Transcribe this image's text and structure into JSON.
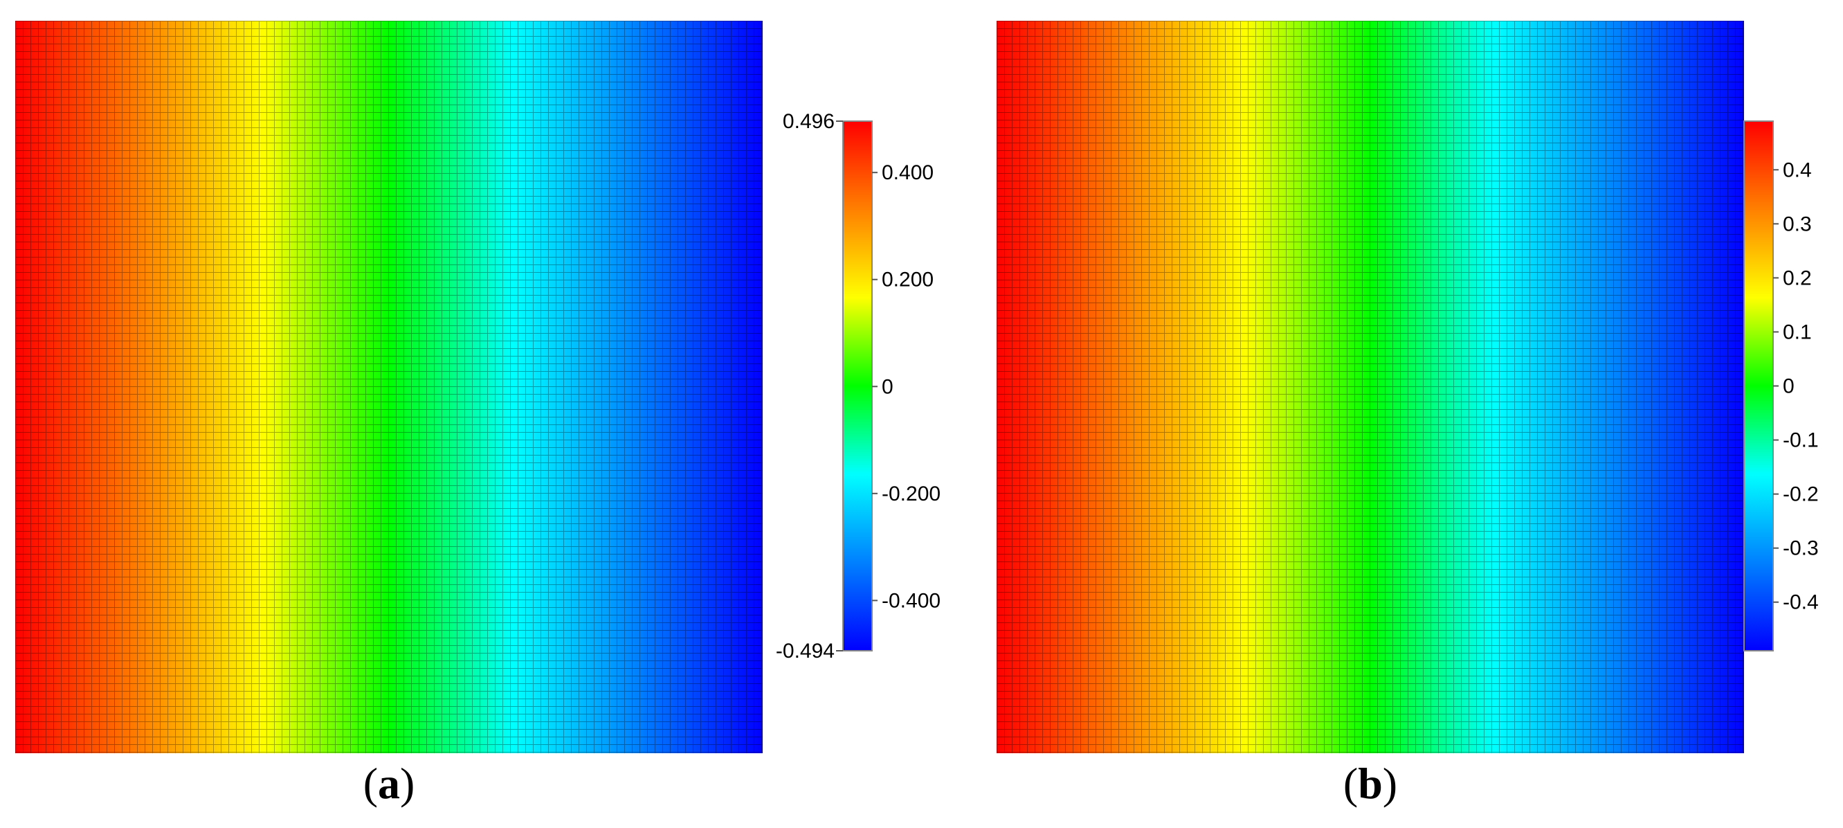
{
  "chart_data": [
    {
      "type": "heatmap",
      "panel_label": "(a)",
      "panel_label_letter": "a",
      "x_distribution": "linear gradient across the field from maximum (left) to minimum (right); no variation along the vertical direction",
      "value_left_edge": 0.496,
      "value_right_edge": -0.494,
      "grid_lines": true,
      "colormap": [
        "#0000ff",
        "#0080ff",
        "#00ffff",
        "#00ff00",
        "#ffff00",
        "#ff8000",
        "#ff0000"
      ],
      "colorbar": {
        "min": -0.494,
        "max": 0.496,
        "min_label": "-0.494",
        "max_label": "0.496",
        "ticks": [
          {
            "value": 0.4,
            "label": "0.400"
          },
          {
            "value": 0.2,
            "label": "0.200"
          },
          {
            "value": 0,
            "label": "0"
          },
          {
            "value": -0.2,
            "label": "-0.200"
          },
          {
            "value": -0.4,
            "label": "-0.400"
          }
        ]
      }
    },
    {
      "type": "heatmap",
      "panel_label": "(b)",
      "panel_label_letter": "b",
      "x_distribution": "linear gradient across the field from maximum (left) to minimum (right); no variation along the vertical direction",
      "value_left_edge": 0.49,
      "value_right_edge": -0.49,
      "grid_lines": true,
      "colormap": [
        "#0000ff",
        "#0080ff",
        "#00ffff",
        "#00ff00",
        "#ffff00",
        "#ff8000",
        "#ff0000"
      ],
      "colorbar": {
        "min": -0.49,
        "max": 0.49,
        "ticks": [
          {
            "value": 0.4,
            "label": "0.4"
          },
          {
            "value": 0.3,
            "label": "0.3"
          },
          {
            "value": 0.2,
            "label": "0.2"
          },
          {
            "value": 0.1,
            "label": "0.1"
          },
          {
            "value": 0,
            "label": "0"
          },
          {
            "value": -0.1,
            "label": "-0.1"
          },
          {
            "value": -0.2,
            "label": "-0.2"
          },
          {
            "value": -0.3,
            "label": "-0.3"
          },
          {
            "value": -0.4,
            "label": "-0.4"
          }
        ]
      }
    }
  ]
}
